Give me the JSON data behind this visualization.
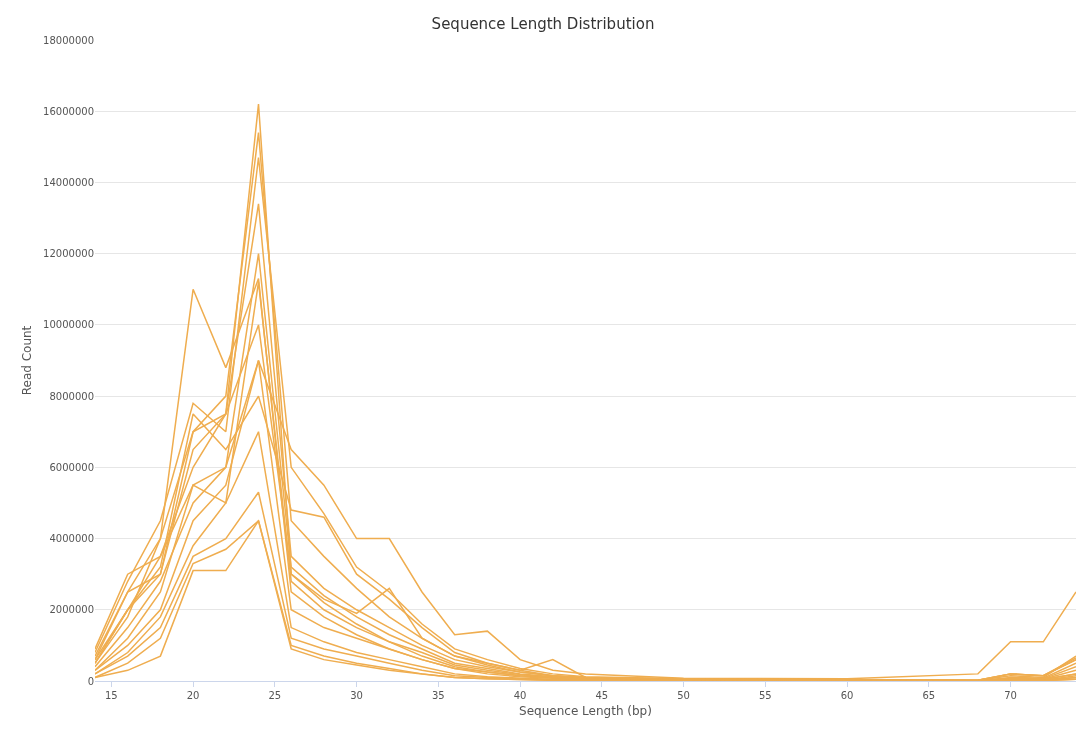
{
  "chart_data": {
    "type": "line",
    "title": "Sequence Length Distribution",
    "xlabel": "Sequence Length (bp)",
    "ylabel": "Read Count",
    "x": [
      14,
      16,
      18,
      20,
      22,
      24,
      26,
      28,
      30,
      32,
      34,
      36,
      38,
      40,
      42,
      44,
      50,
      60,
      68,
      70,
      72,
      74
    ],
    "series": [
      {
        "color": "#efad4f",
        "values": [
          600000,
          2000000,
          3500000,
          6000000,
          7500000,
          16200000,
          3000000,
          2200000,
          1600000,
          1100000,
          700000,
          400000,
          250000,
          150000,
          100000,
          60000,
          30000,
          20000,
          10000,
          50000,
          40000,
          200000
        ]
      },
      {
        "color": "#efad4f",
        "values": [
          500000,
          1800000,
          4000000,
          11000000,
          8800000,
          11300000,
          2500000,
          1800000,
          1300000,
          900000,
          600000,
          350000,
          250000,
          150000,
          100000,
          60000,
          30000,
          20000,
          10000,
          60000,
          50000,
          300000
        ]
      },
      {
        "color": "#efad4f",
        "values": [
          900000,
          3000000,
          3500000,
          5500000,
          6000000,
          9000000,
          6500000,
          5500000,
          4000000,
          4000000,
          2500000,
          1300000,
          1400000,
          600000,
          300000,
          200000,
          80000,
          60000,
          200000,
          1100000,
          1100000,
          2500000
        ]
      },
      {
        "color": "#efad4f",
        "values": [
          100000,
          300000,
          700000,
          3100000,
          3100000,
          4500000,
          1000000,
          700000,
          500000,
          350000,
          200000,
          100000,
          60000,
          40000,
          20000,
          10000,
          10000,
          10000,
          10000,
          30000,
          20000,
          100000
        ]
      },
      {
        "color": "#efad4f",
        "values": [
          700000,
          2500000,
          4000000,
          7000000,
          8000000,
          15400000,
          4500000,
          3500000,
          2600000,
          1800000,
          1200000,
          700000,
          450000,
          250000,
          150000,
          100000,
          50000,
          30000,
          20000,
          200000,
          150000,
          600000
        ]
      },
      {
        "color": "#efad4f",
        "values": [
          800000,
          2800000,
          4500000,
          7800000,
          7000000,
          14700000,
          6000000,
          4700000,
          3200000,
          2500000,
          1600000,
          900000,
          600000,
          350000,
          200000,
          120000,
          60000,
          40000,
          20000,
          150000,
          100000,
          700000
        ]
      },
      {
        "color": "#efad4f",
        "values": [
          500000,
          2000000,
          3000000,
          6500000,
          7500000,
          13400000,
          3500000,
          2600000,
          2000000,
          1500000,
          1000000,
          600000,
          400000,
          250000,
          150000,
          80000,
          40000,
          20000,
          10000,
          100000,
          80000,
          500000
        ]
      },
      {
        "color": "#efad4f",
        "values": [
          400000,
          1500000,
          2800000,
          5000000,
          6000000,
          12000000,
          3200000,
          2400000,
          1800000,
          1300000,
          900000,
          500000,
          350000,
          200000,
          120000,
          70000,
          30000,
          20000,
          10000,
          80000,
          60000,
          400000
        ]
      },
      {
        "color": "#efad4f",
        "values": [
          300000,
          1200000,
          2500000,
          5500000,
          5000000,
          11200000,
          2800000,
          2000000,
          1500000,
          1100000,
          800000,
          450000,
          300000,
          180000,
          100000,
          60000,
          30000,
          20000,
          10000,
          50000,
          50000,
          200000
        ]
      },
      {
        "color": "#efad4f",
        "values": [
          300000,
          1000000,
          2000000,
          4500000,
          5500000,
          9000000,
          2000000,
          1500000,
          1200000,
          900000,
          600000,
          350000,
          200000,
          120000,
          80000,
          50000,
          20000,
          10000,
          10000,
          30000,
          20000,
          150000
        ]
      },
      {
        "color": "#efad4f",
        "values": [
          200000,
          800000,
          1800000,
          3800000,
          5000000,
          7000000,
          1500000,
          1100000,
          800000,
          600000,
          400000,
          200000,
          120000,
          80000,
          50000,
          30000,
          20000,
          10000,
          10000,
          20000,
          20000,
          100000
        ]
      },
      {
        "color": "#efad4f",
        "values": [
          200000,
          700000,
          1500000,
          3500000,
          4000000,
          5300000,
          1200000,
          900000,
          700000,
          500000,
          300000,
          150000,
          100000,
          60000,
          40000,
          20000,
          10000,
          10000,
          10000,
          20000,
          10000,
          50000
        ]
      },
      {
        "color": "#efad4f",
        "values": [
          100000,
          500000,
          1200000,
          3300000,
          3700000,
          4500000,
          900000,
          600000,
          450000,
          300000,
          200000,
          100000,
          60000,
          40000,
          20000,
          10000,
          10000,
          10000,
          10000,
          10000,
          10000,
          50000
        ]
      },
      {
        "color": "#efad4f",
        "values": [
          500000,
          2000000,
          3200000,
          7500000,
          6500000,
          8000000,
          4800000,
          4600000,
          3000000,
          2300000,
          1500000,
          800000,
          500000,
          300000,
          150000,
          100000,
          50000,
          30000,
          20000,
          200000,
          150000,
          650000
        ]
      },
      {
        "color": "#efad4f",
        "values": [
          600000,
          2500000,
          3000000,
          7000000,
          7500000,
          10000000,
          3000000,
          2300000,
          1900000,
          2600000,
          1200000,
          700000,
          500000,
          300000,
          600000,
          100000,
          50000,
          30000,
          20000,
          200000,
          150000,
          600000
        ]
      }
    ],
    "xlim": [
      14,
      74
    ],
    "xticks": [
      15,
      20,
      25,
      30,
      35,
      40,
      45,
      50,
      55,
      60,
      65,
      70
    ],
    "ylim": [
      0,
      18000000
    ],
    "yticks": [
      0,
      2000000,
      4000000,
      6000000,
      8000000,
      10000000,
      12000000,
      14000000,
      16000000,
      18000000
    ],
    "grid": "y",
    "line_style": "solid"
  }
}
